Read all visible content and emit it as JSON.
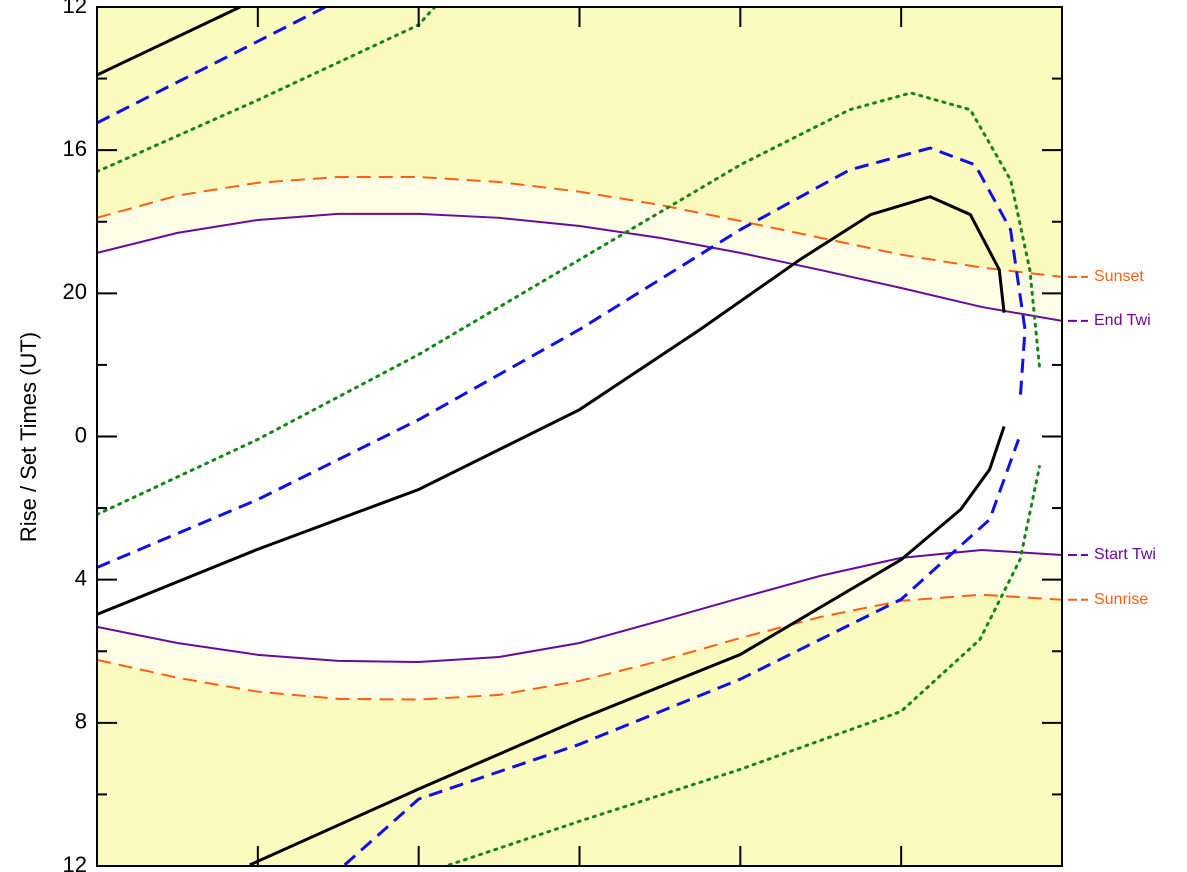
{
  "chart_data": {
    "type": "line",
    "ylabel": "Rise / Set Times (UT)",
    "xlim": [
      0,
      6
    ],
    "xticks": [
      1,
      2,
      3,
      4,
      5
    ],
    "ylim": [
      36,
      12
    ],
    "yticks": [
      12,
      16,
      20,
      {
        "value": 24,
        "label": "0"
      },
      {
        "value": 28,
        "label": "4"
      },
      {
        "value": 32,
        "label": "8"
      },
      {
        "value": 36,
        "label": "12"
      }
    ],
    "yticks_minor": [
      14,
      18,
      22,
      26,
      30,
      34
    ],
    "background": "#fbfbc0",
    "twilight_color": "#fefee6",
    "night_color": "#ffffff",
    "series": [
      {
        "name": "Sunset",
        "color": "#ff6010",
        "style": "dashed",
        "x": [
          0,
          0.5,
          1,
          1.5,
          2,
          2.5,
          3,
          3.5,
          4,
          4.5,
          5,
          5.5,
          6
        ],
        "values": [
          17.89,
          17.27,
          16.91,
          16.75,
          16.75,
          16.89,
          17.16,
          17.53,
          17.98,
          18.45,
          18.92,
          19.28,
          19.54
        ]
      },
      {
        "name": "End Twi",
        "color": "#6a0a9a",
        "style": "solid",
        "x": [
          0,
          0.5,
          1,
          1.5,
          2,
          2.5,
          3,
          3.5,
          4,
          4.5,
          5,
          5.5,
          6
        ],
        "values": [
          18.87,
          18.31,
          17.95,
          17.78,
          17.78,
          17.89,
          18.12,
          18.45,
          18.87,
          19.35,
          19.85,
          20.38,
          20.77
        ]
      },
      {
        "name": "Start Twi",
        "color": "#6a0a9a",
        "style": "solid",
        "x": [
          0,
          0.5,
          1,
          1.5,
          2,
          2.5,
          3,
          3.5,
          4,
          4.5,
          5,
          5.5,
          6
        ],
        "values": [
          29.32,
          29.77,
          30.1,
          30.27,
          30.3,
          30.16,
          29.77,
          29.15,
          28.51,
          27.89,
          27.39,
          27.17,
          27.31
        ]
      },
      {
        "name": "Sunrise",
        "color": "#ff6010",
        "style": "dashed",
        "x": [
          0,
          0.5,
          1,
          1.5,
          2,
          2.5,
          3,
          3.5,
          4,
          4.5,
          5,
          5.5,
          6
        ],
        "values": [
          30.24,
          30.74,
          31.13,
          31.33,
          31.35,
          31.22,
          30.83,
          30.27,
          29.63,
          29.04,
          28.59,
          28.42,
          28.56
        ]
      },
      {
        "color": "#000000",
        "style": "solid",
        "x": [
          0,
          1,
          2,
          3,
          3.75,
          4.37,
          4.81,
          5.18,
          5.43,
          5.61,
          5.64
        ],
        "values": [
          28.97,
          27.15,
          25.48,
          23.25,
          21.01,
          19.06,
          17.8,
          17.3,
          17.8,
          19.34,
          20.54
        ]
      },
      {
        "color": "#000000",
        "style": "solid",
        "x": [
          0,
          0.89,
          0.92,
          0.95,
          2,
          3,
          4,
          5,
          5.37,
          5.55,
          5.64
        ],
        "values": [
          13.9,
          12.0,
          null,
          35.97,
          33.85,
          31.9,
          30.09,
          27.44,
          26.04,
          24.92,
          23.72
        ]
      },
      {
        "color": "#1010e0",
        "style": "dashed",
        "x": [
          0,
          1,
          2,
          3,
          4,
          4.68,
          5.18,
          5.46,
          5.68,
          5.77,
          5.74
        ],
        "values": [
          27.66,
          25.76,
          23.53,
          21.01,
          18.22,
          16.55,
          15.94,
          16.41,
          18.22,
          21.01,
          22.97
        ]
      },
      {
        "color": "#1010e0",
        "style": "dashed",
        "x": [
          0,
          1.42,
          1.48,
          1.54,
          2,
          3,
          4,
          5,
          5.55,
          5.73
        ],
        "values": [
          15.24,
          12.0,
          null,
          35.97,
          34.13,
          32.6,
          30.78,
          28.55,
          26.32,
          24.08
        ]
      },
      {
        "color": "#118811",
        "style": "dotted",
        "x": [
          0,
          1,
          2,
          3,
          4,
          4.68,
          5.06,
          5.43,
          5.68,
          5.8,
          5.86
        ],
        "values": [
          26.18,
          24.08,
          21.71,
          19.06,
          16.41,
          14.87,
          14.4,
          14.87,
          16.83,
          19.34,
          22.05
        ]
      },
      {
        "color": "#118811",
        "style": "dotted",
        "x": [
          0,
          1,
          2,
          2.1,
          2.15,
          2.19,
          3,
          4,
          5,
          5.49,
          5.74,
          5.86
        ],
        "values": [
          16.6,
          14.6,
          12.5,
          12.0,
          null,
          35.97,
          34.75,
          33.3,
          31.68,
          29.67,
          27.43,
          24.84
        ]
      }
    ]
  }
}
